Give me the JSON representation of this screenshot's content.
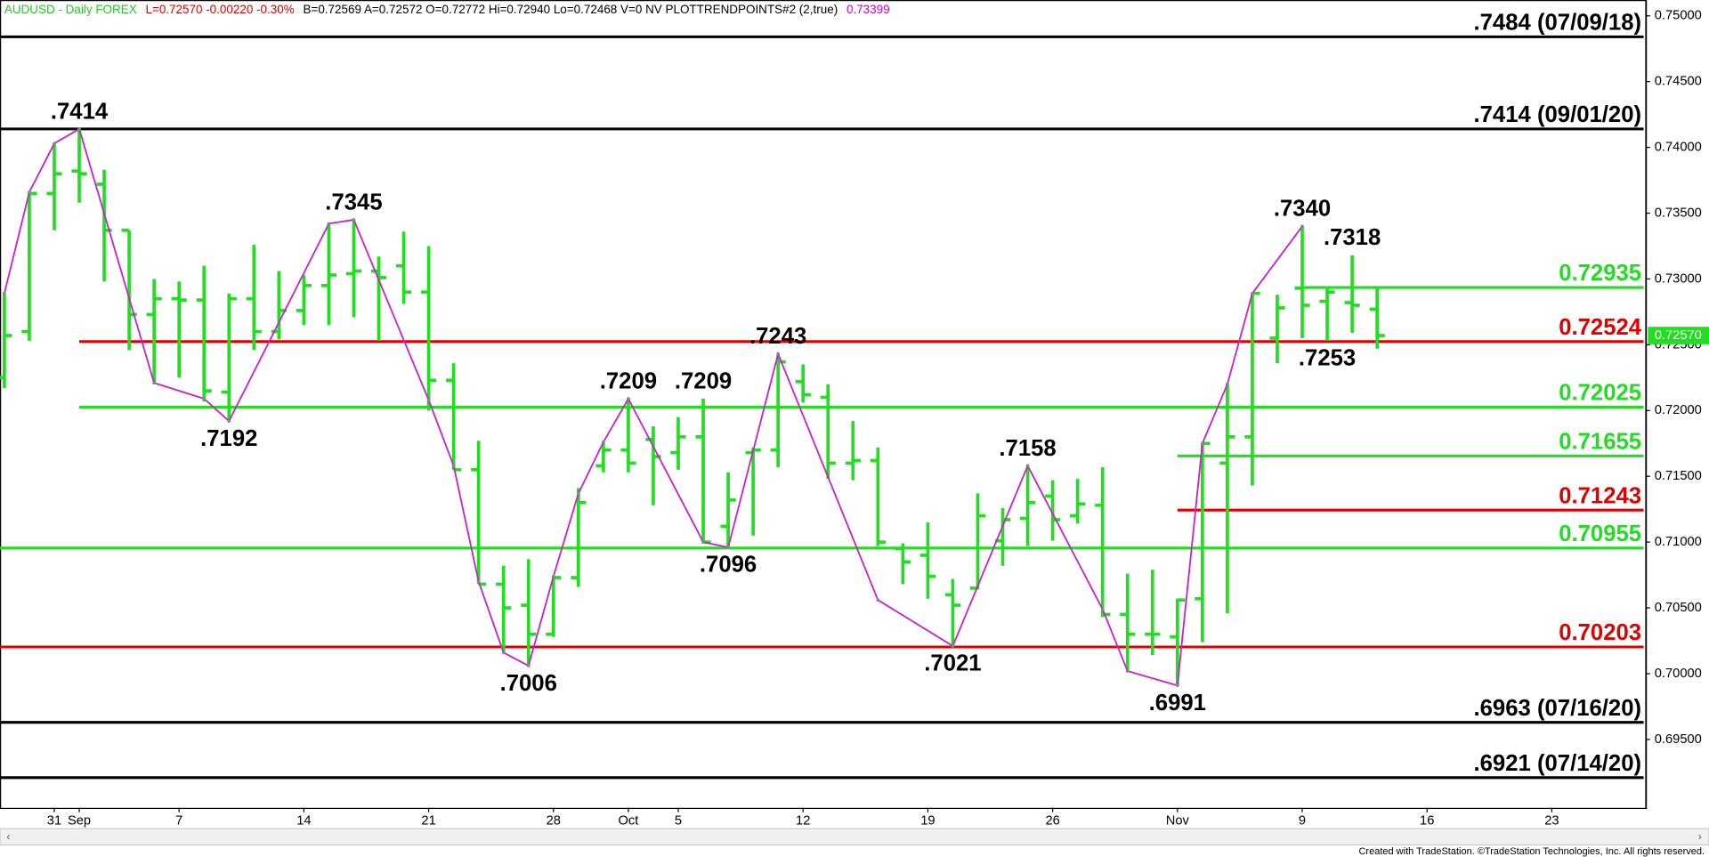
{
  "header": [
    {
      "text": "AUDUSD - Daily  FOREX",
      "color": "#22cc22"
    },
    {
      "text": "L=0.72570  -0.00220  -0.30%",
      "color": "#e00000"
    },
    {
      "text": "B=0.72569  A=0.72572  O=0.72772  Hi=0.72940  Lo=0.72468  V=0  NV  PLOTTRENDPOINTS#2 (2,true)",
      "color": "#000000"
    },
    {
      "text": "0.73399",
      "color": "#cc00cc"
    }
  ],
  "footer": "Created with TradeStation. ©TradeStation Technologies, Inc. All rights reserved.",
  "chart_data": {
    "type": "ohlc",
    "bar_color": "#22dd22",
    "categories": [
      null,
      null,
      "31",
      "Sep",
      null,
      null,
      null,
      "7",
      null,
      null,
      null,
      null,
      "14",
      null,
      null,
      null,
      null,
      "21",
      null,
      null,
      null,
      null,
      "28",
      null,
      null,
      "Oct",
      null,
      "5",
      null,
      null,
      null,
      null,
      "12",
      null,
      null,
      null,
      null,
      "19",
      null,
      null,
      null,
      null,
      "26",
      null,
      null,
      null,
      null,
      "Nov",
      null,
      null,
      null,
      null,
      "9",
      null,
      null,
      null,
      null,
      "16",
      null,
      null,
      null,
      null,
      "23",
      null,
      null,
      null
    ],
    "open": [
      0.7225,
      0.726,
      0.7365,
      0.7382,
      0.7372,
      0.7337,
      0.7273,
      0.7285,
      0.7284,
      0.7214,
      0.7285,
      0.726,
      0.7276,
      0.7295,
      0.7304,
      0.7306,
      0.731,
      0.729,
      0.7223,
      0.7155,
      0.7068,
      0.7052,
      0.703,
      0.7073,
      0.7158,
      0.717,
      0.7178,
      0.7168,
      0.718,
      0.7112,
      0.7168,
      0.717,
      0.7222,
      0.721,
      0.716,
      0.7162,
      0.7095,
      0.709,
      0.706,
      0.7065,
      0.7101,
      0.7118,
      0.7135,
      0.712,
      0.7128,
      0.7045,
      0.703,
      0.7028,
      0.7057,
      0.716,
      0.718,
      0.7255,
      0.7293,
      0.7283,
      0.7282,
      0.7277,
      null,
      null,
      null,
      null,
      null,
      null,
      null,
      null,
      null,
      null
    ],
    "high": [
      0.7289,
      0.7366,
      0.7403,
      0.7414,
      0.7383,
      0.7337,
      0.73,
      0.7298,
      0.731,
      0.7289,
      0.7326,
      0.7306,
      0.7303,
      0.7342,
      0.7345,
      0.7317,
      0.7336,
      0.7325,
      0.7236,
      0.7177,
      0.7082,
      0.7087,
      0.7074,
      0.7141,
      0.7176,
      0.7209,
      0.7188,
      0.7195,
      0.7209,
      0.7153,
      0.7172,
      0.7243,
      0.7235,
      0.722,
      0.7192,
      0.7172,
      0.7099,
      0.7115,
      0.7072,
      0.7137,
      0.7126,
      0.7158,
      0.7147,
      0.7148,
      0.7157,
      0.7076,
      0.7079,
      0.7057,
      0.7176,
      0.7221,
      0.7289,
      0.7288,
      0.734,
      0.7294,
      0.7318,
      0.7294,
      null,
      null,
      null,
      null,
      null,
      null,
      null,
      null,
      null,
      null
    ],
    "low": [
      0.7217,
      0.7253,
      0.7337,
      0.7358,
      0.7298,
      0.7246,
      0.7221,
      0.7225,
      0.7207,
      0.7192,
      0.7246,
      0.7254,
      0.7265,
      0.7265,
      0.7271,
      0.7253,
      0.7281,
      0.72,
      0.7155,
      0.7068,
      0.7016,
      0.7006,
      0.7028,
      0.7066,
      0.7153,
      0.7153,
      0.7128,
      0.7155,
      0.7099,
      0.7096,
      0.7105,
      0.7157,
      0.7206,
      0.7148,
      0.7147,
      0.7097,
      0.7068,
      0.7057,
      0.7021,
      0.7064,
      0.7082,
      0.7097,
      0.7101,
      0.7114,
      0.7043,
      0.7002,
      0.7014,
      0.6991,
      0.7024,
      0.7046,
      0.7143,
      0.7236,
      0.7255,
      0.7253,
      0.7259,
      0.7247,
      null,
      null,
      null,
      null,
      null,
      null,
      null,
      null,
      null,
      null
    ],
    "close": [
      0.7257,
      0.7365,
      0.738,
      0.738,
      0.7337,
      0.7273,
      0.7285,
      0.7284,
      0.7215,
      0.7285,
      0.726,
      0.7276,
      0.7295,
      0.7303,
      0.7306,
      0.7301,
      0.729,
      0.7223,
      0.7155,
      0.7068,
      0.705,
      0.703,
      0.7073,
      0.713,
      0.717,
      0.716,
      0.7165,
      0.718,
      0.71,
      0.7132,
      0.717,
      0.7237,
      0.7212,
      0.716,
      0.7162,
      0.71,
      0.7085,
      0.7074,
      0.7052,
      0.712,
      0.7117,
      0.713,
      0.7117,
      0.7129,
      0.7045,
      0.703,
      0.703,
      0.7056,
      0.7175,
      0.718,
      0.7289,
      0.7278,
      0.728,
      0.729,
      0.728,
      0.7257,
      null,
      null,
      null,
      null,
      null,
      null,
      null,
      null,
      null,
      null
    ],
    "trend": {
      "color": "#cc22cc",
      "x": [
        0,
        1,
        2,
        3,
        6,
        8,
        9,
        13,
        14,
        17,
        18,
        19,
        20,
        21,
        22,
        23,
        24,
        25,
        28,
        29,
        31,
        35,
        38,
        41,
        44,
        45,
        47,
        48,
        49,
        50,
        52
      ],
      "values": [
        0.7289,
        0.7366,
        0.7403,
        0.7414,
        0.7221,
        0.7209,
        0.7192,
        0.7342,
        0.7345,
        0.7208,
        0.7158,
        0.707,
        0.7016,
        0.7006,
        0.7074,
        0.7137,
        0.7176,
        0.7209,
        0.71,
        0.7096,
        0.7243,
        0.7056,
        0.7021,
        0.7158,
        0.7049,
        0.7002,
        0.6991,
        0.7175,
        0.722,
        0.7289,
        0.734
      ]
    },
    "annotations": [
      {
        "label": ".7414",
        "x": 3,
        "value": 0.7414,
        "position": "above"
      },
      {
        "label": ".7192",
        "x": 9,
        "value": 0.7192,
        "position": "below"
      },
      {
        "label": ".7345",
        "x": 14,
        "value": 0.7345,
        "position": "above"
      },
      {
        "label": ".7006",
        "x": 21,
        "value": 0.7006,
        "position": "below"
      },
      {
        "label": ".7209",
        "x": 25,
        "value": 0.7209,
        "position": "above"
      },
      {
        "label": ".7209",
        "x": 28,
        "value": 0.7209,
        "position": "above"
      },
      {
        "label": ".7096",
        "x": 29,
        "value": 0.7096,
        "position": "below"
      },
      {
        "label": ".7243",
        "x": 31,
        "value": 0.7243,
        "position": "above"
      },
      {
        "label": ".7021",
        "x": 38,
        "value": 0.7021,
        "position": "below"
      },
      {
        "label": ".7158",
        "x": 41,
        "value": 0.7158,
        "position": "above"
      },
      {
        "label": ".6991",
        "x": 47,
        "value": 0.6991,
        "position": "below"
      },
      {
        "label": ".7340",
        "x": 52,
        "value": 0.734,
        "position": "above"
      },
      {
        "label": ".7253",
        "x": 53,
        "value": 0.7253,
        "position": "below"
      },
      {
        "label": ".7318",
        "x": 54,
        "value": 0.7318,
        "position": "above"
      }
    ],
    "levels": [
      {
        "value": 0.7484,
        "label": ".7484 (07/09/18)",
        "color": "#000000"
      },
      {
        "value": 0.7414,
        "label": ".7414 (09/01/20)",
        "color": "#000000"
      },
      {
        "value": 0.72935,
        "label": "0.72935",
        "color": "#22dd22",
        "from": 52
      },
      {
        "value": 0.72524,
        "label": "0.72524",
        "color": "#e00000",
        "from": 3
      },
      {
        "value": 0.72025,
        "label": "0.72025",
        "color": "#22dd22",
        "from": 3
      },
      {
        "value": 0.71655,
        "label": "0.71655",
        "color": "#22dd22",
        "from": 47
      },
      {
        "value": 0.71243,
        "label": "0.71243",
        "color": "#e00000",
        "from": 47
      },
      {
        "value": 0.70955,
        "label": "0.70955",
        "color": "#22dd22"
      },
      {
        "value": 0.70203,
        "label": "0.70203",
        "color": "#e00000"
      },
      {
        "value": 0.6963,
        "label": ".6963 (07/16/20)",
        "color": "#000000"
      },
      {
        "value": 0.6921,
        "label": ".6921 (07/14/20)",
        "color": "#000000"
      }
    ],
    "current": {
      "value": 0.7257,
      "label": "0.72570",
      "color": "#22dd22"
    },
    "ylim": [
      0.6898,
      0.7512
    ],
    "yticks": [
      {
        "value": 0.695,
        "label": "0.69500"
      },
      {
        "value": 0.7,
        "label": "0.70000"
      },
      {
        "value": 0.705,
        "label": "0.70500"
      },
      {
        "value": 0.71,
        "label": "0.71000"
      },
      {
        "value": 0.715,
        "label": "0.71500"
      },
      {
        "value": 0.72,
        "label": "0.72000"
      },
      {
        "value": 0.725,
        "label": "0.72500"
      },
      {
        "value": 0.73,
        "label": "0.73000"
      },
      {
        "value": 0.735,
        "label": "0.73500"
      },
      {
        "value": 0.74,
        "label": "0.74000"
      },
      {
        "value": 0.745,
        "label": "0.74500"
      },
      {
        "value": 0.75,
        "label": "0.75000"
      }
    ]
  }
}
